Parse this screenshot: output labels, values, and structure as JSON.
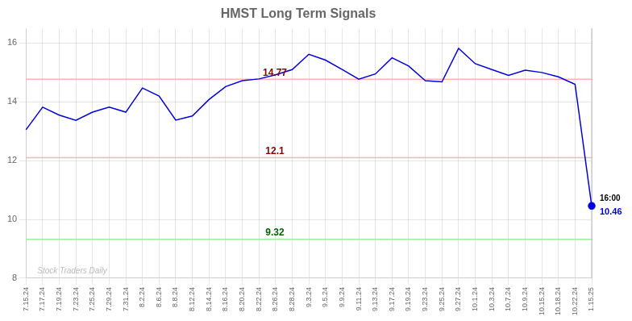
{
  "chart_data": {
    "type": "line",
    "title": "HMST Long Term Signals",
    "categories": [
      "7.15.24",
      "7.17.24",
      "7.19.24",
      "7.23.24",
      "7.25.24",
      "7.29.24",
      "7.31.24",
      "8.2.24",
      "8.6.24",
      "8.8.24",
      "8.12.24",
      "8.14.24",
      "8.16.24",
      "8.20.24",
      "8.22.24",
      "8.26.24",
      "8.28.24",
      "9.3.24",
      "9.5.24",
      "9.9.24",
      "9.11.24",
      "9.13.24",
      "9.17.24",
      "9.19.24",
      "9.23.24",
      "9.25.24",
      "9.27.24",
      "10.1.24",
      "10.3.24",
      "10.7.24",
      "10.9.24",
      "10.15.24",
      "10.18.24",
      "10.22.24",
      "1.15.25"
    ],
    "values": [
      13.05,
      13.82,
      13.55,
      13.37,
      13.65,
      13.82,
      13.65,
      14.47,
      14.2,
      13.38,
      13.52,
      14.08,
      14.52,
      14.72,
      14.78,
      14.92,
      15.1,
      15.62,
      15.42,
      15.1,
      14.77,
      14.95,
      15.5,
      15.22,
      14.72,
      14.68,
      15.82,
      15.3,
      15.1,
      14.9,
      15.08,
      15.0,
      14.85,
      14.6,
      10.46
    ],
    "color": "#0000dd",
    "ylim": [
      8,
      16.5
    ],
    "yticks": [
      8,
      10,
      12,
      14,
      16
    ],
    "grid": true,
    "hlines": [
      {
        "value": 14.77,
        "label": "14.77",
        "color": "#ffb3b3",
        "label_color": "#8b0000"
      },
      {
        "value": 12.1,
        "label": "12.1",
        "color": "#ffb3b3",
        "label_color": "#8b0000"
      },
      {
        "value": 9.32,
        "label": "9.32",
        "color": "#99ee99",
        "label_color": "#006600"
      }
    ],
    "watermark": {
      "text": "Stock Traders Daily",
      "color": "#bbbbbb"
    },
    "end_labels": [
      {
        "text": "16:00",
        "color": "#000000"
      },
      {
        "text": "10.46",
        "color": "#0000dd"
      }
    ]
  }
}
